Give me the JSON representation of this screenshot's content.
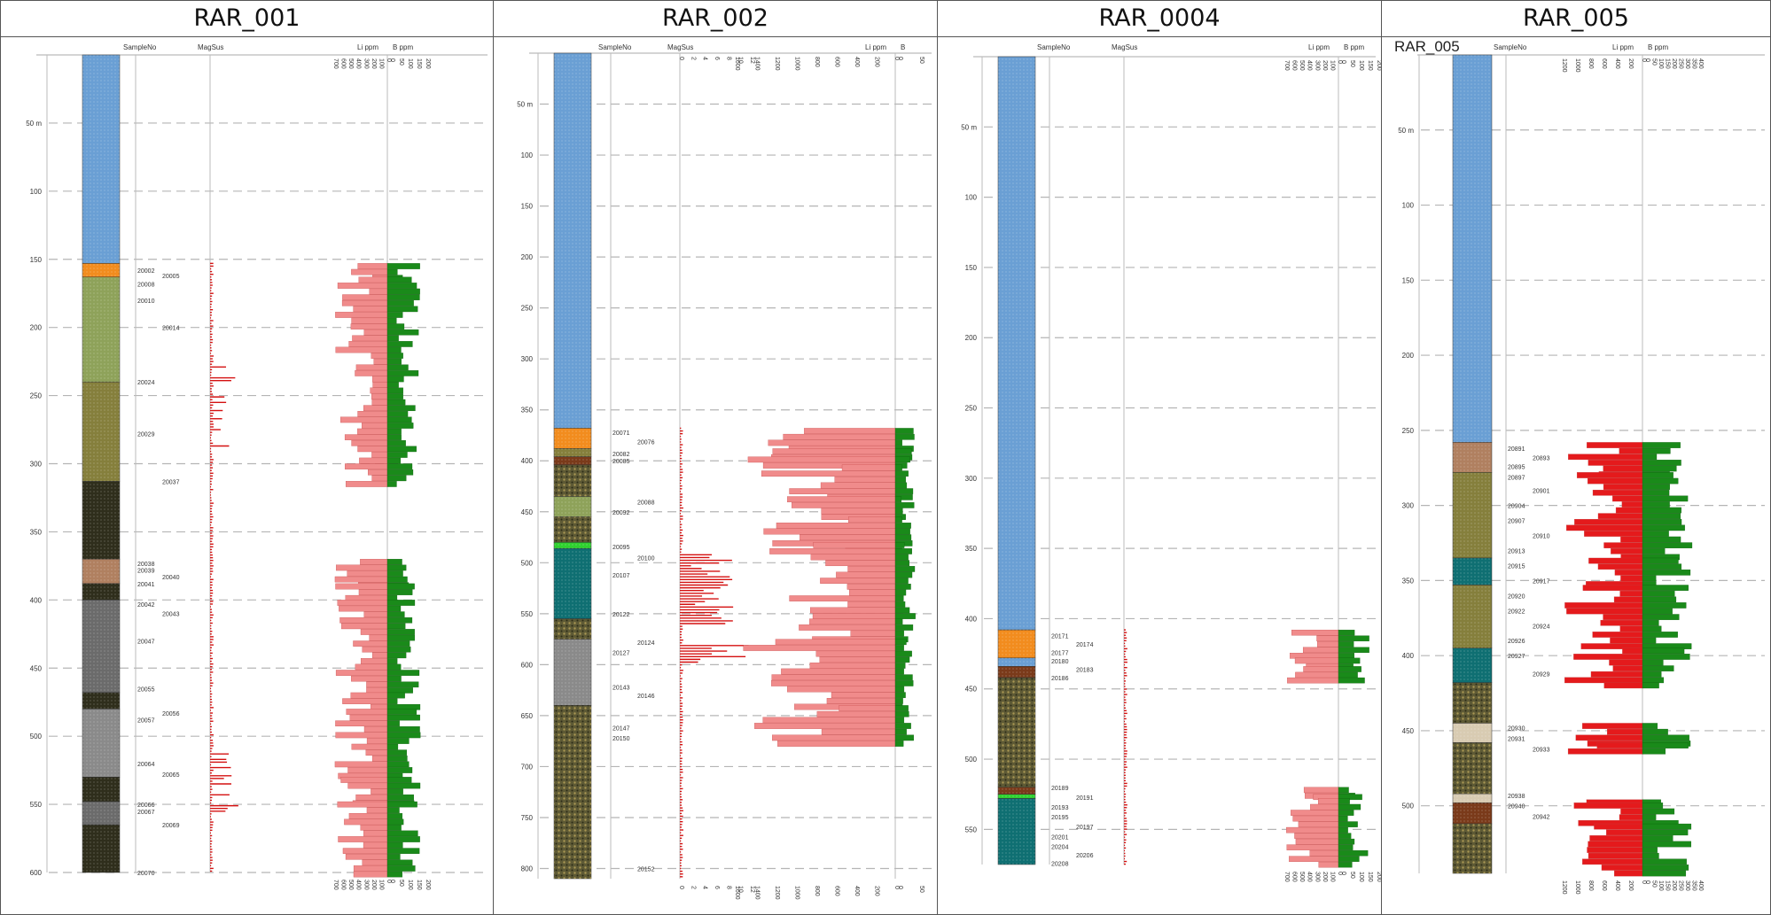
{
  "colors": {
    "clay": "#6a9fd4",
    "orange": "#f28c1e",
    "olive_light": "#8ea25a",
    "olive": "#857f3c",
    "dark": "#2f2e1c",
    "brown_lt": "#b08060",
    "grey": "#6b6b6b",
    "grey_lt": "#8a8a8a",
    "teal": "#0f6f72",
    "green_bright": "#2fd12f",
    "mottled": "#5e5a35",
    "tan": "#d8cbb2",
    "rust": "#7a3a1a",
    "li_bar": "#f08b8b",
    "li_bar_dark": "#e41a1c",
    "b_bar": "#1a8a1a",
    "magsus": "#d41010"
  },
  "panels": [
    {
      "id": "p1",
      "title": "RAR_001",
      "header_labels": {
        "sample": "SampleNo",
        "magsus": "MagSus",
        "li": "Li ppm",
        "b": "B ppm"
      },
      "depth_labels": [
        {
          "d": 50,
          "t": "50 m"
        },
        {
          "d": 100,
          "t": "100"
        },
        {
          "d": 150,
          "t": "150"
        },
        {
          "d": 200,
          "t": "200"
        },
        {
          "d": 250,
          "t": "250"
        },
        {
          "d": 300,
          "t": "300"
        },
        {
          "d": 350,
          "t": "350"
        },
        {
          "d": 400,
          "t": "400"
        },
        {
          "d": 450,
          "t": "450"
        },
        {
          "d": 500,
          "t": "500"
        },
        {
          "d": 550,
          "t": "550"
        },
        {
          "d": 600,
          "t": "600"
        }
      ],
      "lithology": [
        {
          "from": 0,
          "to": 153,
          "unit": "clay"
        },
        {
          "from": 153,
          "to": 163,
          "unit": "orange"
        },
        {
          "from": 163,
          "to": 240,
          "unit": "olive_light"
        },
        {
          "from": 240,
          "to": 313,
          "unit": "olive"
        },
        {
          "from": 313,
          "to": 370,
          "unit": "dark"
        },
        {
          "from": 370,
          "to": 388,
          "unit": "brown_lt"
        },
        {
          "from": 388,
          "to": 400,
          "unit": "dark"
        },
        {
          "from": 400,
          "to": 468,
          "unit": "grey"
        },
        {
          "from": 468,
          "to": 480,
          "unit": "dark"
        },
        {
          "from": 480,
          "to": 530,
          "unit": "grey_lt"
        },
        {
          "from": 530,
          "to": 548,
          "unit": "dark"
        },
        {
          "from": 548,
          "to": 565,
          "unit": "grey"
        },
        {
          "from": 565,
          "to": 600,
          "unit": "dark"
        }
      ],
      "sample_labels": [
        {
          "d": 158,
          "t": "20002"
        },
        {
          "d": 162,
          "t": "20005"
        },
        {
          "d": 168,
          "t": "20008"
        },
        {
          "d": 180,
          "t": "20010"
        },
        {
          "d": 200,
          "t": "20014"
        },
        {
          "d": 240,
          "t": "20024"
        },
        {
          "d": 278,
          "t": "20029"
        },
        {
          "d": 313,
          "t": "20037"
        },
        {
          "d": 373,
          "t": "20038"
        },
        {
          "d": 378,
          "t": "20039"
        },
        {
          "d": 383,
          "t": "20040"
        },
        {
          "d": 388,
          "t": "20041"
        },
        {
          "d": 403,
          "t": "20042"
        },
        {
          "d": 410,
          "t": "20043"
        },
        {
          "d": 430,
          "t": "20047"
        },
        {
          "d": 465,
          "t": "20055"
        },
        {
          "d": 483,
          "t": "20056"
        },
        {
          "d": 488,
          "t": "20057"
        },
        {
          "d": 520,
          "t": "20064"
        },
        {
          "d": 528,
          "t": "20065"
        },
        {
          "d": 550,
          "t": "20066"
        },
        {
          "d": 555,
          "t": "20067"
        },
        {
          "d": 565,
          "t": "20069"
        },
        {
          "d": 600,
          "t": "20070"
        }
      ],
      "li_ticks": [
        "700",
        "600",
        "500",
        "400",
        "300",
        "200",
        "100",
        "0"
      ],
      "b_ticks": [
        "0",
        "50",
        "100",
        "150",
        "200"
      ]
    },
    {
      "id": "p2",
      "title": "RAR_002",
      "header_labels": {
        "sample": "SampleNo",
        "magsus": "MagSus",
        "li": "Li ppm",
        "b": "B"
      },
      "depth_labels": [
        {
          "d": 50,
          "t": "50 m"
        },
        {
          "d": 100,
          "t": "100"
        },
        {
          "d": 150,
          "t": "150"
        },
        {
          "d": 200,
          "t": "200"
        },
        {
          "d": 250,
          "t": "250"
        },
        {
          "d": 300,
          "t": "300"
        },
        {
          "d": 350,
          "t": "350"
        },
        {
          "d": 400,
          "t": "400"
        },
        {
          "d": 450,
          "t": "450"
        },
        {
          "d": 500,
          "t": "500"
        },
        {
          "d": 550,
          "t": "550"
        },
        {
          "d": 600,
          "t": "600"
        },
        {
          "d": 650,
          "t": "650"
        },
        {
          "d": 700,
          "t": "700"
        },
        {
          "d": 750,
          "t": "750"
        },
        {
          "d": 800,
          "t": "800"
        }
      ],
      "lithology": [
        {
          "from": 0,
          "to": 368,
          "unit": "clay"
        },
        {
          "from": 368,
          "to": 388,
          "unit": "orange"
        },
        {
          "from": 388,
          "to": 396,
          "unit": "olive"
        },
        {
          "from": 396,
          "to": 404,
          "unit": "rust"
        },
        {
          "from": 404,
          "to": 435,
          "unit": "mottled"
        },
        {
          "from": 435,
          "to": 455,
          "unit": "olive_light"
        },
        {
          "from": 455,
          "to": 480,
          "unit": "mottled"
        },
        {
          "from": 480,
          "to": 486,
          "unit": "green_bright"
        },
        {
          "from": 486,
          "to": 555,
          "unit": "teal"
        },
        {
          "from": 555,
          "to": 575,
          "unit": "mottled"
        },
        {
          "from": 575,
          "to": 640,
          "unit": "grey_lt"
        },
        {
          "from": 640,
          "to": 810,
          "unit": "mottled"
        }
      ],
      "sample_labels": [
        {
          "d": 372,
          "t": "20071"
        },
        {
          "d": 381,
          "t": "20076"
        },
        {
          "d": 393,
          "t": "20082"
        },
        {
          "d": 400,
          "t": "20085"
        },
        {
          "d": 440,
          "t": "20088"
        },
        {
          "d": 450,
          "t": "20092"
        },
        {
          "d": 484,
          "t": "20095"
        },
        {
          "d": 495,
          "t": "20100"
        },
        {
          "d": 512,
          "t": "20107"
        },
        {
          "d": 550,
          "t": "20122"
        },
        {
          "d": 578,
          "t": "20124"
        },
        {
          "d": 588,
          "t": "20127"
        },
        {
          "d": 622,
          "t": "20143"
        },
        {
          "d": 630,
          "t": "20146"
        },
        {
          "d": 662,
          "t": "20147"
        },
        {
          "d": 672,
          "t": "20150"
        },
        {
          "d": 800,
          "t": "20152"
        }
      ],
      "magsus_ticks": [
        "0",
        "2",
        "4",
        "6",
        "8",
        "10",
        "12"
      ],
      "li_ticks": [
        "1600",
        "1400",
        "1200",
        "1000",
        "800",
        "600",
        "400",
        "200",
        "0"
      ],
      "b_ticks": [
        "0",
        "50"
      ]
    },
    {
      "id": "p3",
      "title": "RAR_0004",
      "header_labels": {
        "sample": "SampleNo",
        "magsus": "MagSus",
        "li": "Li ppm",
        "b": "B ppm"
      },
      "depth_labels": [
        {
          "d": 50,
          "t": "50 m"
        },
        {
          "d": 100,
          "t": "100"
        },
        {
          "d": 150,
          "t": "150"
        },
        {
          "d": 200,
          "t": "200"
        },
        {
          "d": 250,
          "t": "250"
        },
        {
          "d": 300,
          "t": "300"
        },
        {
          "d": 350,
          "t": "350"
        },
        {
          "d": 400,
          "t": "400"
        },
        {
          "d": 450,
          "t": "450"
        },
        {
          "d": 500,
          "t": "500"
        },
        {
          "d": 550,
          "t": "550"
        }
      ],
      "lithology": [
        {
          "from": 0,
          "to": 408,
          "unit": "clay"
        },
        {
          "from": 408,
          "to": 428,
          "unit": "orange"
        },
        {
          "from": 428,
          "to": 434,
          "unit": "clay"
        },
        {
          "from": 434,
          "to": 442,
          "unit": "rust"
        },
        {
          "from": 442,
          "to": 520,
          "unit": "mottled"
        },
        {
          "from": 520,
          "to": 525,
          "unit": "rust"
        },
        {
          "from": 525,
          "to": 528,
          "unit": "green_bright"
        },
        {
          "from": 528,
          "to": 575,
          "unit": "teal"
        }
      ],
      "sample_labels": [
        {
          "d": 412,
          "t": "20171"
        },
        {
          "d": 418,
          "t": "20174"
        },
        {
          "d": 424,
          "t": "20177"
        },
        {
          "d": 430,
          "t": "20180"
        },
        {
          "d": 436,
          "t": "20183"
        },
        {
          "d": 442,
          "t": "20186"
        },
        {
          "d": 520,
          "t": "20189"
        },
        {
          "d": 527,
          "t": "20191"
        },
        {
          "d": 534,
          "t": "20193"
        },
        {
          "d": 541,
          "t": "20195"
        },
        {
          "d": 548,
          "t": "20197"
        },
        {
          "d": 555,
          "t": "20201"
        },
        {
          "d": 562,
          "t": "20204"
        },
        {
          "d": 568,
          "t": "20206"
        },
        {
          "d": 574,
          "t": "20208"
        }
      ],
      "li_ticks": [
        "700",
        "600",
        "500",
        "400",
        "300",
        "200",
        "100",
        "0"
      ],
      "b_ticks": [
        "0",
        "50",
        "100",
        "150",
        "200"
      ]
    },
    {
      "id": "p4",
      "title": "RAR_005",
      "subtitle": "RAR_005",
      "header_labels": {
        "sample": "SampleNo",
        "magsus": "",
        "li": "Li ppm",
        "b": "B ppm"
      },
      "depth_labels": [
        {
          "d": 50,
          "t": "50 m"
        },
        {
          "d": 100,
          "t": "100"
        },
        {
          "d": 150,
          "t": "150"
        },
        {
          "d": 200,
          "t": "200"
        },
        {
          "d": 250,
          "t": "250"
        },
        {
          "d": 300,
          "t": "300"
        },
        {
          "d": 350,
          "t": "350"
        },
        {
          "d": 400,
          "t": "400"
        },
        {
          "d": 450,
          "t": "450"
        },
        {
          "d": 500,
          "t": "500"
        }
      ],
      "lithology": [
        {
          "from": 0,
          "to": 258,
          "unit": "clay"
        },
        {
          "from": 258,
          "to": 278,
          "unit": "brown_lt"
        },
        {
          "from": 278,
          "to": 335,
          "unit": "olive"
        },
        {
          "from": 335,
          "to": 353,
          "unit": "teal"
        },
        {
          "from": 353,
          "to": 395,
          "unit": "olive"
        },
        {
          "from": 395,
          "to": 418,
          "unit": "teal"
        },
        {
          "from": 418,
          "to": 445,
          "unit": "mottled"
        },
        {
          "from": 445,
          "to": 458,
          "unit": "tan"
        },
        {
          "from": 458,
          "to": 492,
          "unit": "mottled"
        },
        {
          "from": 492,
          "to": 498,
          "unit": "tan"
        },
        {
          "from": 498,
          "to": 512,
          "unit": "rust"
        },
        {
          "from": 512,
          "to": 545,
          "unit": "mottled"
        }
      ],
      "sample_labels": [
        {
          "d": 262,
          "t": "20891"
        },
        {
          "d": 268,
          "t": "20893"
        },
        {
          "d": 274,
          "t": "20895"
        },
        {
          "d": 281,
          "t": "20897"
        },
        {
          "d": 290,
          "t": "20901"
        },
        {
          "d": 300,
          "t": "20904"
        },
        {
          "d": 310,
          "t": "20907"
        },
        {
          "d": 320,
          "t": "20910"
        },
        {
          "d": 330,
          "t": "20913"
        },
        {
          "d": 340,
          "t": "20915"
        },
        {
          "d": 350,
          "t": "20917"
        },
        {
          "d": 360,
          "t": "20920"
        },
        {
          "d": 370,
          "t": "20922"
        },
        {
          "d": 380,
          "t": "20924"
        },
        {
          "d": 390,
          "t": "20926"
        },
        {
          "d": 400,
          "t": "20927"
        },
        {
          "d": 412,
          "t": "20929"
        },
        {
          "d": 448,
          "t": "20930"
        },
        {
          "d": 455,
          "t": "20931"
        },
        {
          "d": 462,
          "t": "20933"
        },
        {
          "d": 493,
          "t": "20938"
        },
        {
          "d": 500,
          "t": "20940"
        },
        {
          "d": 507,
          "t": "20942"
        }
      ],
      "li_ticks": [
        "1200",
        "1000",
        "800",
        "600",
        "400",
        "200",
        "0"
      ],
      "b_ticks": [
        "0",
        "50",
        "100",
        "150",
        "200",
        "250",
        "300",
        "350",
        "400"
      ]
    }
  ]
}
